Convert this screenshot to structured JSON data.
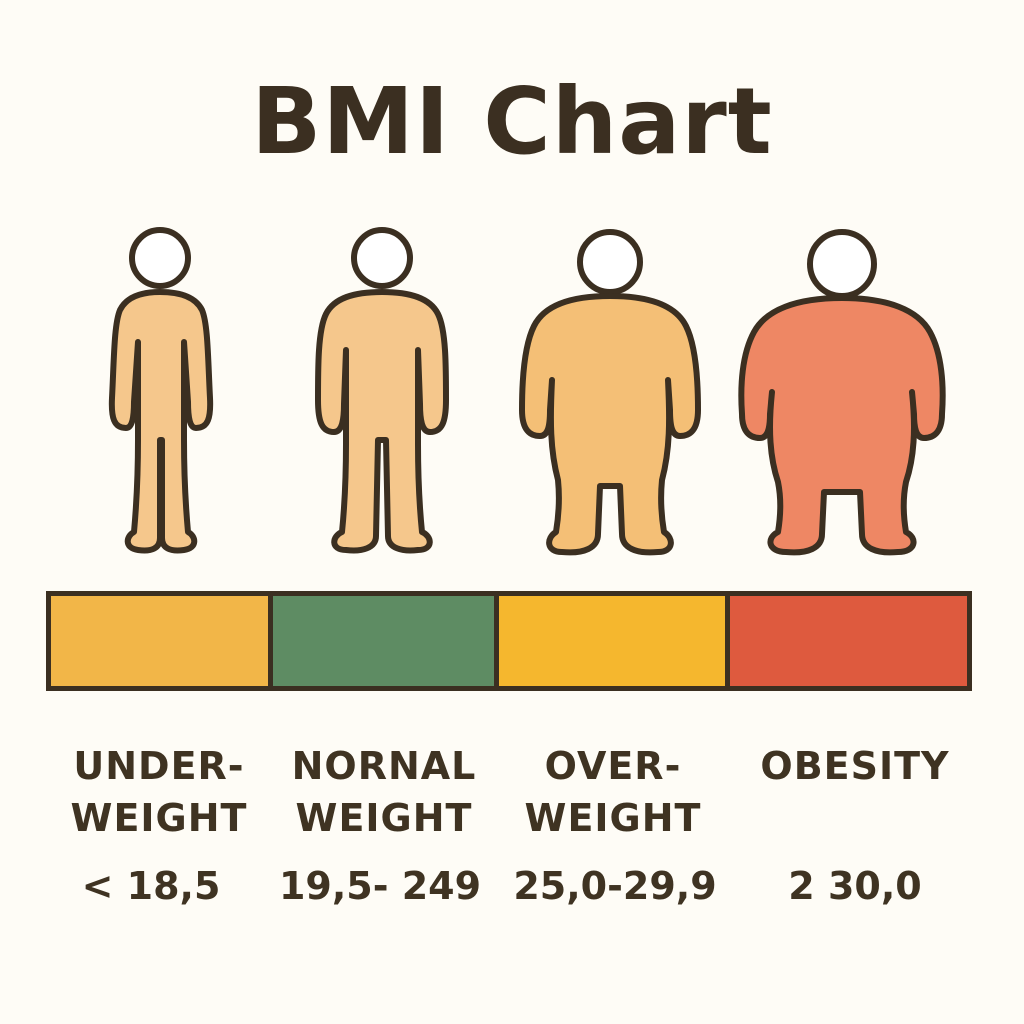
{
  "title": "BMI Chart",
  "categories": [
    {
      "id": "underweight",
      "line1": "UNDER-",
      "line2": "WEIGHT",
      "range": "< 18,5",
      "bar_color": "#f2b648",
      "figure_color": "#f5c78c"
    },
    {
      "id": "normal",
      "line1": "NORNAL",
      "line2": "WEIGHT",
      "range": "19,5- 249",
      "bar_color": "#5e8c63",
      "figure_color": "#f5c78c"
    },
    {
      "id": "overweight",
      "line1": "OVER-",
      "line2": "WEIGHT",
      "range": "25,0-29,9",
      "bar_color": "#f5b72e",
      "figure_color": "#f4bf76"
    },
    {
      "id": "obesity",
      "line1": "OBESITY",
      "line2": "",
      "range": "2 30,0",
      "bar_color": "#de5a3e",
      "figure_color": "#ee8764"
    }
  ],
  "outline_color": "#3b2f21"
}
